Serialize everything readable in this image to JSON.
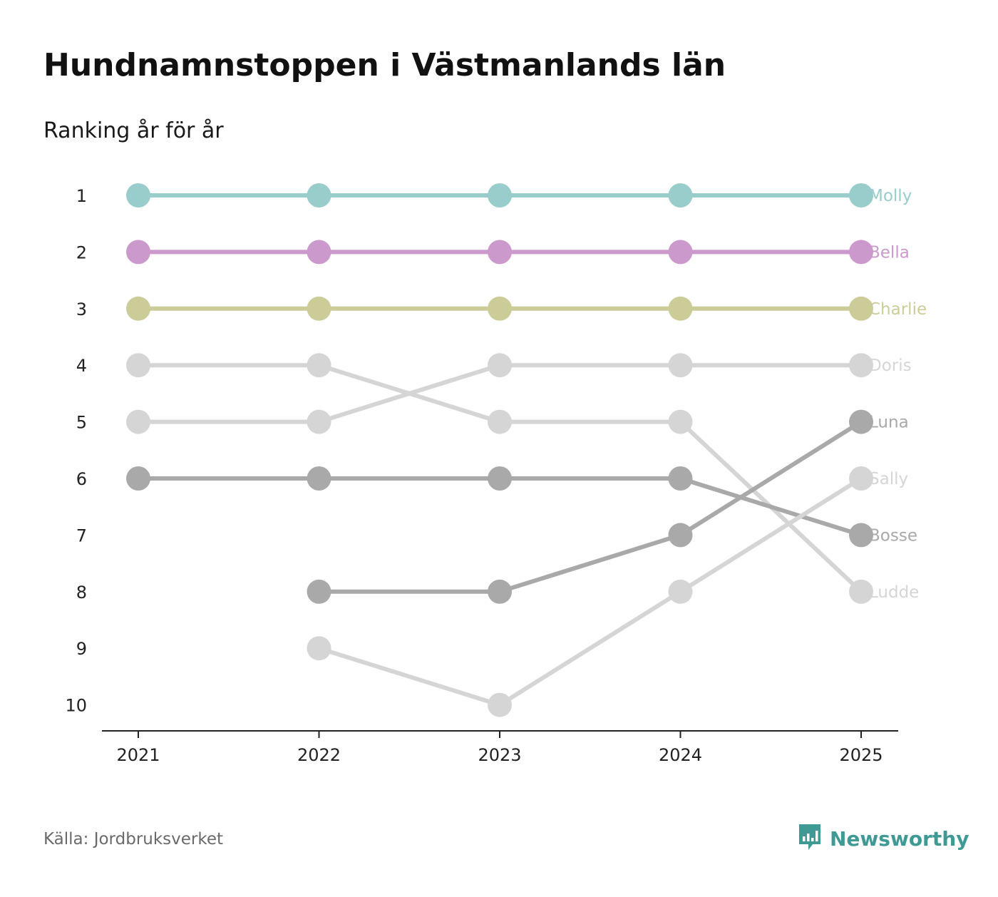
{
  "chart_data": {
    "type": "line",
    "title": "Hundnamnstoppen i Västmanlands län",
    "subtitle": "Ranking år för år",
    "xlabel": "",
    "ylabel": "",
    "x": [
      "2021",
      "2022",
      "2023",
      "2024",
      "2025"
    ],
    "y_ticks": [
      "1",
      "2",
      "3",
      "4",
      "5",
      "6",
      "7",
      "8",
      "9",
      "10"
    ],
    "ylim": [
      1,
      10
    ],
    "y_reversed": true,
    "series": [
      {
        "name": "Molly",
        "color": "#98cdcb",
        "values": [
          1,
          1,
          1,
          1,
          1
        ]
      },
      {
        "name": "Bella",
        "color": "#cc99cc",
        "values": [
          2,
          2,
          2,
          2,
          2
        ]
      },
      {
        "name": "Charlie",
        "color": "#cccc99",
        "values": [
          3,
          3,
          3,
          3,
          3
        ]
      },
      {
        "name": "Doris",
        "color": "#d5d5d5",
        "values": [
          5,
          5,
          4,
          4,
          4
        ]
      },
      {
        "name": "Luna",
        "color": "#a9a9a9",
        "values": [
          null,
          8,
          8,
          7,
          5
        ]
      },
      {
        "name": "Sally",
        "color": "#d5d5d5",
        "values": [
          null,
          9,
          10,
          8,
          6
        ]
      },
      {
        "name": "Bosse",
        "color": "#a9a9a9",
        "values": [
          6,
          6,
          6,
          6,
          7
        ]
      },
      {
        "name": "Ludde",
        "color": "#d5d5d5",
        "values": [
          4,
          4,
          5,
          5,
          8
        ]
      }
    ]
  },
  "footer": {
    "source": "Källa: Jordbruksverket",
    "brand": "Newsworthy"
  },
  "colors": {
    "brand": "#3f9a96",
    "axis": "#222222"
  },
  "icons": {
    "brand_logo": "newsworthy-logo-icon"
  }
}
